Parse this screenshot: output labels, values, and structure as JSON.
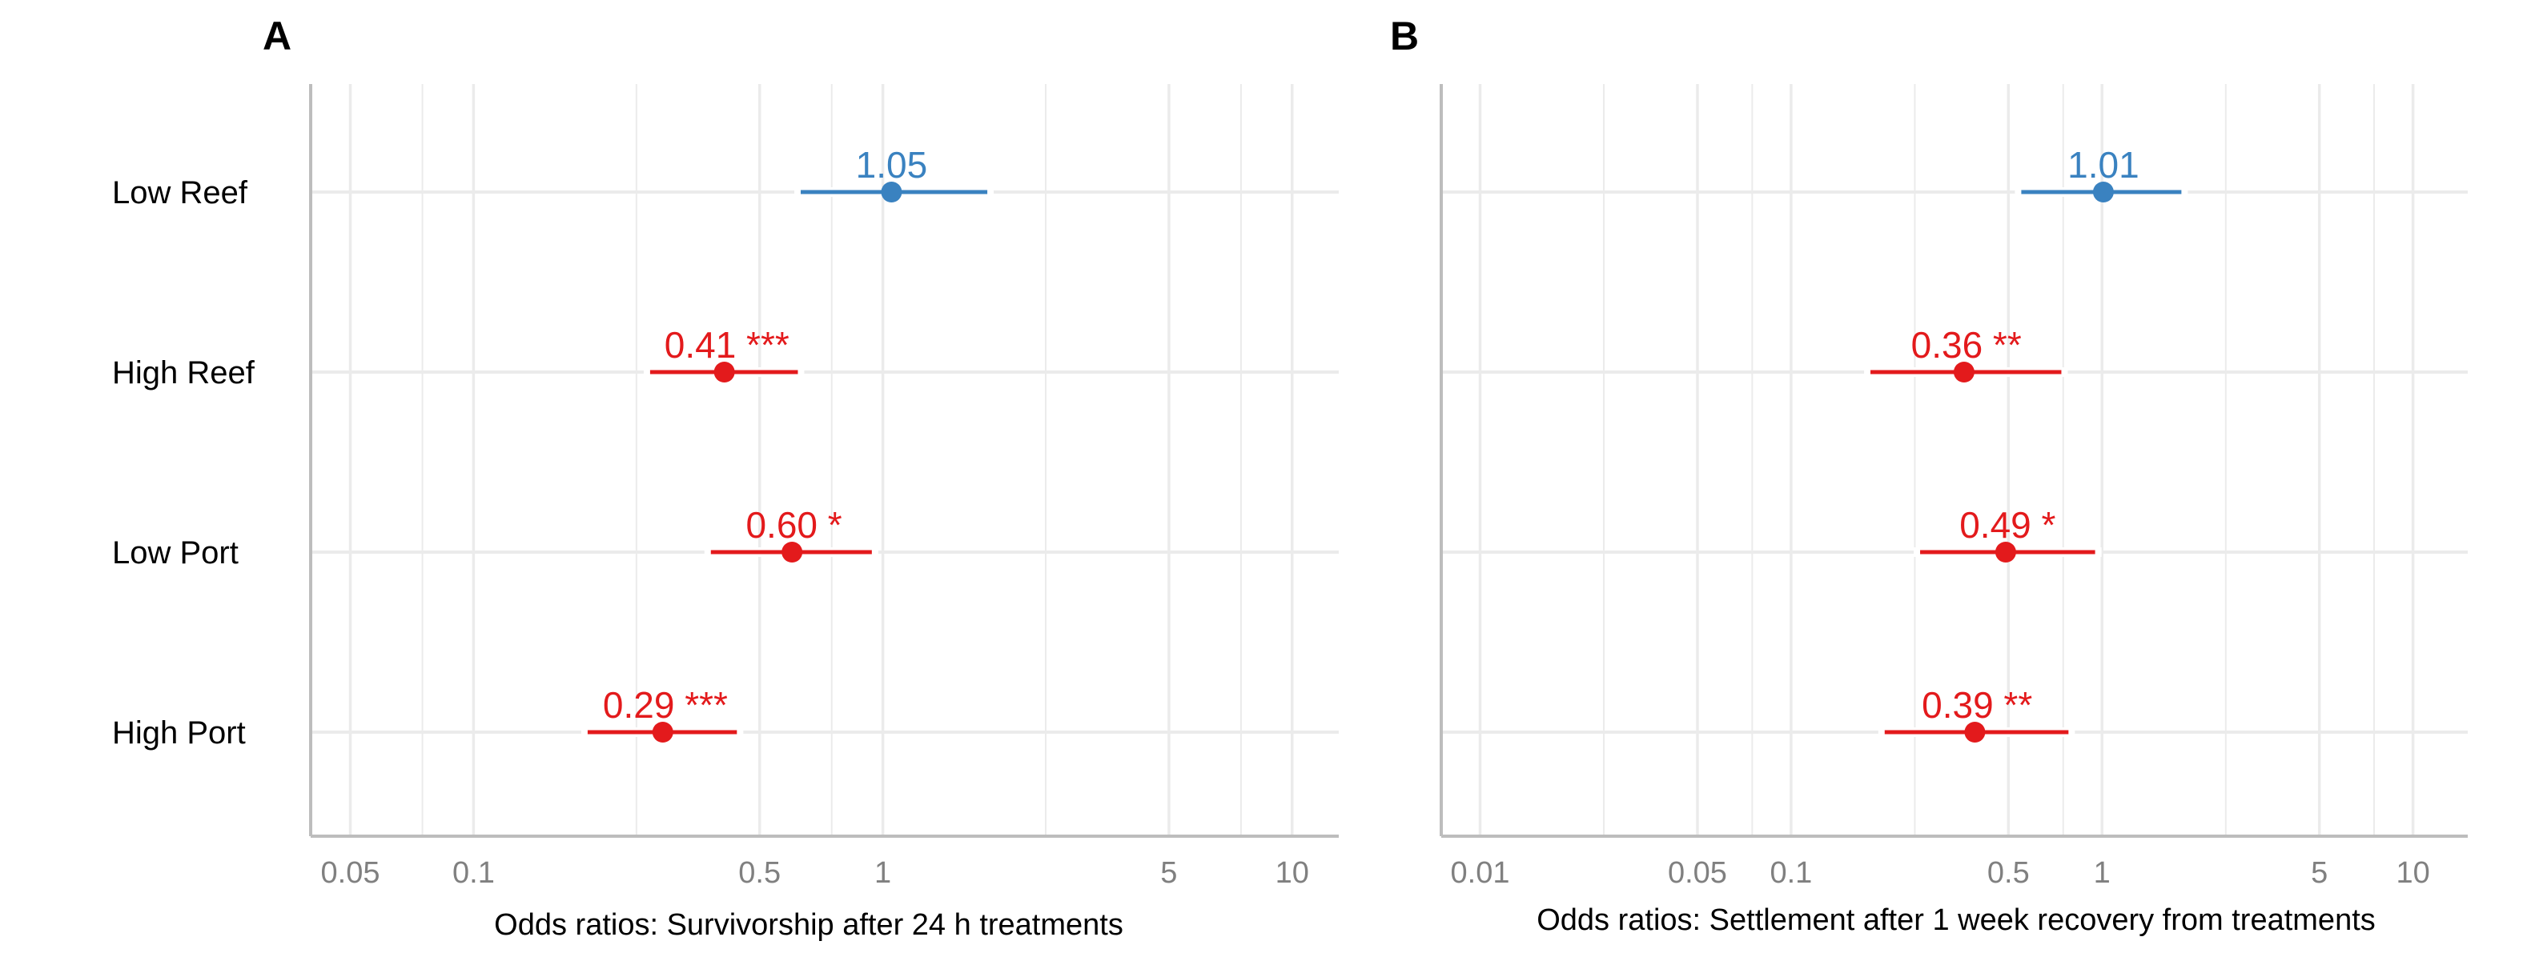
{
  "chart_data": [
    {
      "type": "forest",
      "panel_label": "A",
      "xlabel": "Odds ratios: Survivorship after 24 h treatments",
      "x_scale": "log",
      "xlim": [
        0.04,
        13
      ],
      "x_ticks": [
        0.05,
        0.1,
        0.5,
        1,
        5,
        10
      ],
      "x_tick_labels": [
        "0.05",
        "0.1",
        "0.5",
        "1",
        "5",
        "10"
      ],
      "minor_gridlines": [
        0.075,
        0.25,
        0.75,
        2.5,
        7.5
      ],
      "categories": [
        "Low Reef",
        "High Reef",
        "Low Port",
        "High Port"
      ],
      "points": [
        {
          "category": "Low Reef",
          "estimate": 1.05,
          "ci_low": 0.63,
          "ci_high": 1.8,
          "label": "1.05",
          "significant": false
        },
        {
          "category": "High Reef",
          "estimate": 0.41,
          "ci_low": 0.27,
          "ci_high": 0.62,
          "label": "0.41 ***",
          "significant": true
        },
        {
          "category": "Low Port",
          "estimate": 0.6,
          "ci_low": 0.38,
          "ci_high": 0.94,
          "label": "0.60 *",
          "significant": true
        },
        {
          "category": "High Port",
          "estimate": 0.29,
          "ci_low": 0.19,
          "ci_high": 0.44,
          "label": "0.29 ***",
          "significant": true
        }
      ],
      "grid": true
    },
    {
      "type": "forest",
      "panel_label": "B",
      "xlabel": "Odds ratios: Settlement after 1 week recovery from treatments",
      "x_scale": "log",
      "xlim": [
        0.0075,
        15
      ],
      "x_ticks": [
        0.01,
        0.05,
        0.1,
        0.5,
        1,
        5,
        10
      ],
      "x_tick_labels": [
        "0.01",
        "0.05",
        "0.1",
        "0.5",
        "1",
        "5",
        "10"
      ],
      "minor_gridlines": [
        0.025,
        0.075,
        0.25,
        0.75,
        2.5,
        7.5
      ],
      "categories": [
        "Low Reef",
        "High Reef",
        "Low Port",
        "High Port"
      ],
      "points": [
        {
          "category": "Low Reef",
          "estimate": 1.01,
          "ci_low": 0.55,
          "ci_high": 1.8,
          "label": "1.01",
          "significant": false
        },
        {
          "category": "High Reef",
          "estimate": 0.36,
          "ci_low": 0.18,
          "ci_high": 0.74,
          "label": "0.36 **",
          "significant": true
        },
        {
          "category": "Low Port",
          "estimate": 0.49,
          "ci_low": 0.26,
          "ci_high": 0.95,
          "label": "0.49 *",
          "significant": true
        },
        {
          "category": "High Port",
          "estimate": 0.39,
          "ci_low": 0.2,
          "ci_high": 0.78,
          "label": "0.39 **",
          "significant": true
        }
      ],
      "grid": true
    }
  ],
  "colors": {
    "significant": "#e31a1c",
    "not_significant": "#3a82c0",
    "grid": "#ebebeb",
    "axis": "#bdbdbd"
  }
}
